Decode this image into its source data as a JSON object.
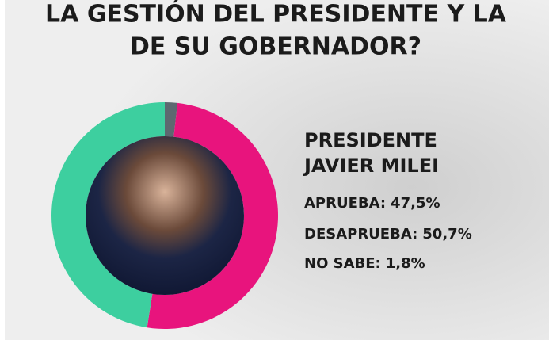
{
  "chart_data": {
    "type": "donut",
    "title": [
      "LA GESTIÓN DEL PRESIDENTE Y LA",
      "DE SU GOBERNADOR?"
    ],
    "subtitle": [
      "PRESIDENTE",
      "JAVIER MILEI"
    ],
    "categories": [
      "NO SABE:",
      "DESAPRUEBA:",
      "APRUEBA:"
    ],
    "values": [
      1.8,
      50.7,
      47.5
    ],
    "value_labels": [
      "1,8%",
      "50,7%",
      "47,5%"
    ],
    "colors": [
      "#5d6870",
      "#e8147d",
      "#3dcf9f"
    ]
  }
}
